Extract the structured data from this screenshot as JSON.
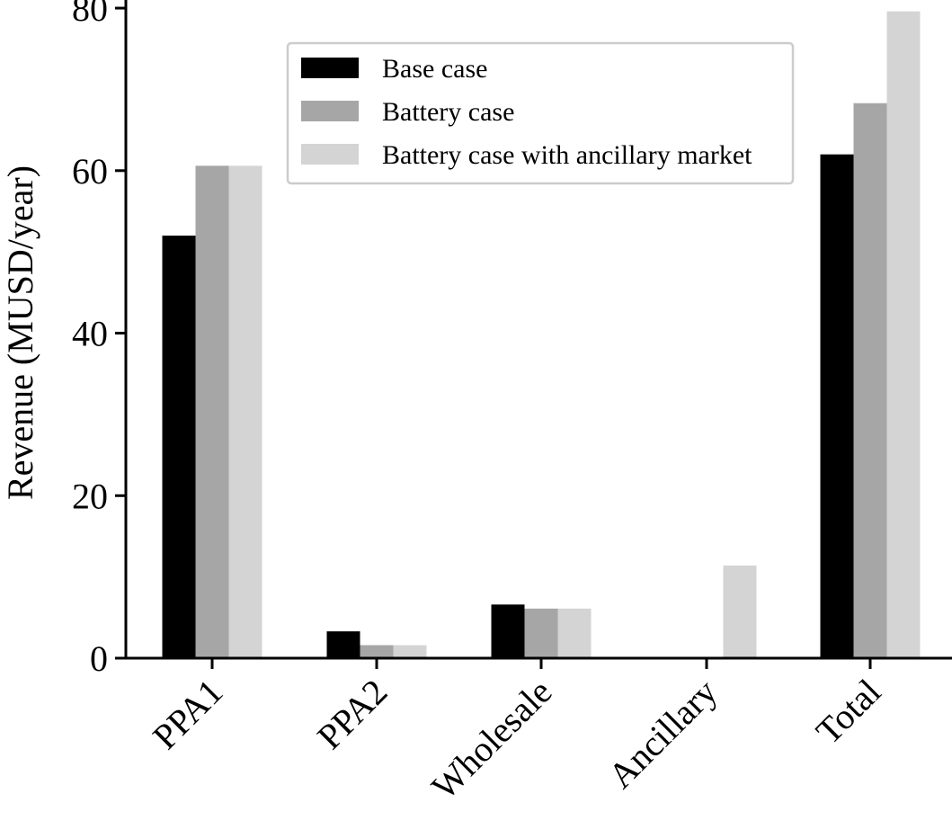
{
  "chart_data": {
    "type": "bar",
    "title": "",
    "xlabel": "",
    "ylabel": "Revenue (MUSD/year)",
    "ylim": [
      0,
      81
    ],
    "yticks": [
      0,
      20,
      40,
      60,
      80
    ],
    "categories": [
      "PPA1",
      "PPA2",
      "Wholesale",
      "Ancillary",
      "Total"
    ],
    "series": [
      {
        "name": "Base case",
        "color": "#000000",
        "values": [
          52.0,
          3.3,
          6.6,
          0.0,
          62.0
        ]
      },
      {
        "name": "Battery case",
        "color": "#a6a6a6",
        "values": [
          60.6,
          1.6,
          6.1,
          0.0,
          68.3
        ]
      },
      {
        "name": "Battery case with ancillary market",
        "color": "#d4d4d4",
        "values": [
          60.6,
          1.6,
          6.1,
          11.4,
          79.6
        ]
      }
    ],
    "legend_position": "top-right",
    "grid": false
  }
}
